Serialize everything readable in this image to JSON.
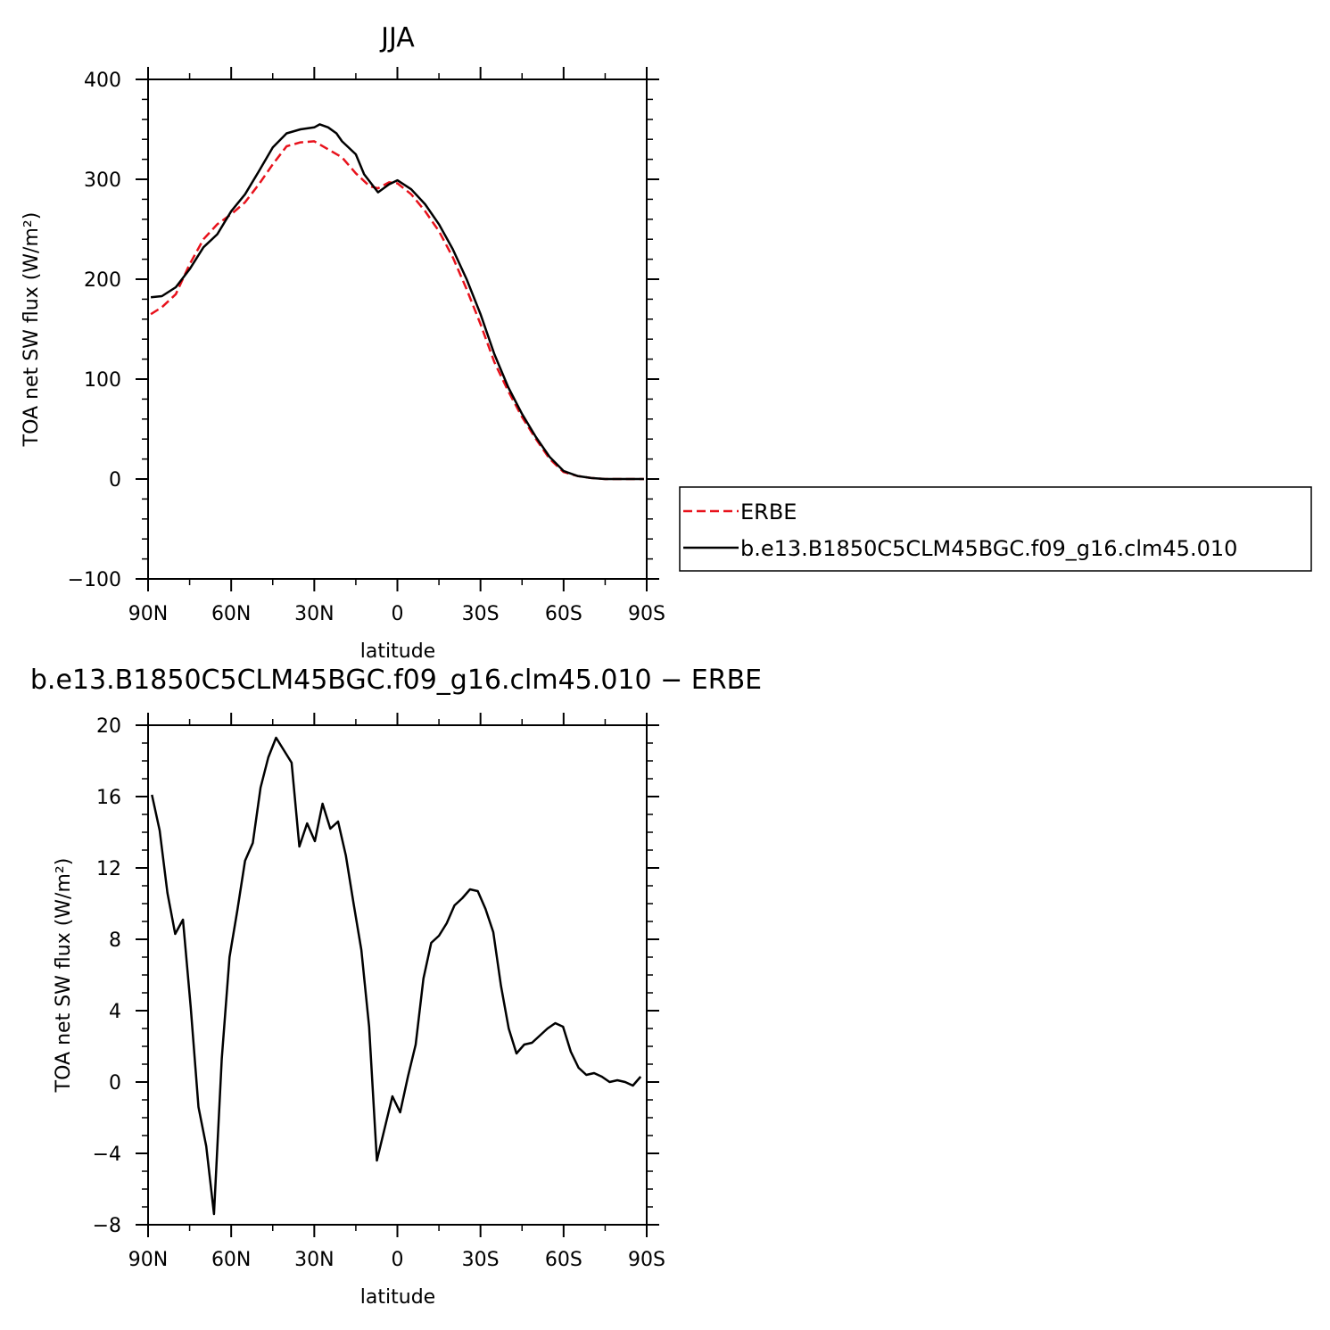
{
  "chart_data": [
    {
      "type": "line",
      "title": "JJA",
      "xlabel": "latitude",
      "ylabel": "TOA net SW flux (W/m²)",
      "xlim": [
        -90,
        90
      ],
      "ylim": [
        -100,
        400
      ],
      "x_ticks": [
        -90,
        -60,
        -30,
        0,
        30,
        60,
        90
      ],
      "x_tick_labels": [
        "90N",
        "60N",
        "30N",
        "0",
        "30S",
        "60S",
        "90S"
      ],
      "y_ticks": [
        -100,
        0,
        100,
        200,
        300,
        400
      ],
      "y_tick_labels": [
        "−100",
        "0",
        "100",
        "200",
        "300",
        "400"
      ],
      "legend_position": "right",
      "legend_entries": [
        "ERBE",
        "b.e13.B1850C5CLM45BGC.f09_g16.clm45.010"
      ],
      "series": [
        {
          "name": "ERBE",
          "color": "#e8121c",
          "dash": "dashed",
          "x": [
            -89,
            -85,
            -80,
            -75,
            -70,
            -65,
            -60,
            -55,
            -50,
            -45,
            -40,
            -35,
            -30,
            -25,
            -20,
            -15,
            -10,
            -7,
            -3,
            0,
            5,
            10,
            15,
            20,
            25,
            30,
            35,
            40,
            45,
            50,
            55,
            60,
            65,
            70,
            75,
            80,
            85,
            89
          ],
          "y": [
            165,
            172,
            185,
            215,
            240,
            255,
            265,
            277,
            295,
            315,
            333,
            337,
            338,
            330,
            322,
            306,
            293,
            291,
            297,
            296,
            285,
            268,
            248,
            222,
            190,
            155,
            117,
            88,
            62,
            40,
            20,
            7,
            3,
            1,
            0,
            0,
            0,
            0
          ]
        },
        {
          "name": "b.e13.B1850C5CLM45BGC.f09_g16.clm45.010",
          "color": "#000000",
          "dash": "solid",
          "x": [
            -89,
            -85,
            -80,
            -75,
            -70,
            -65,
            -60,
            -55,
            -50,
            -45,
            -40,
            -35,
            -30,
            -28,
            -25,
            -22,
            -20,
            -15,
            -12,
            -7,
            -3,
            0,
            5,
            10,
            15,
            20,
            25,
            30,
            35,
            40,
            45,
            50,
            55,
            60,
            65,
            70,
            75,
            80,
            85,
            89
          ],
          "y": [
            182,
            183,
            192,
            210,
            232,
            245,
            268,
            285,
            308,
            332,
            346,
            350,
            352,
            355,
            352,
            346,
            338,
            325,
            305,
            287,
            295,
            299,
            290,
            275,
            255,
            230,
            200,
            165,
            125,
            92,
            65,
            42,
            22,
            8,
            3,
            1,
            0,
            0,
            0,
            0
          ]
        }
      ]
    },
    {
      "type": "line",
      "title": "b.e13.B1850C5CLM45BGC.f09_g16.clm45.010 − ERBE",
      "xlabel": "latitude",
      "ylabel": "TOA net SW flux (W/m²)",
      "xlim": [
        -90,
        90
      ],
      "ylim": [
        -8,
        20
      ],
      "x_ticks": [
        -90,
        -60,
        -30,
        0,
        30,
        60,
        90
      ],
      "x_tick_labels": [
        "90N",
        "60N",
        "30N",
        "0",
        "30S",
        "60S",
        "90S"
      ],
      "y_ticks": [
        -8,
        -4,
        0,
        4,
        8,
        12,
        16,
        20
      ],
      "y_tick_labels": [
        "−8",
        "−4",
        "0",
        "4",
        "8",
        "12",
        "16",
        "20"
      ],
      "series": [
        {
          "color": "#000000",
          "dash": "solid",
          "x": [
            -88.6,
            -85.8,
            -83.0,
            -80.2,
            -77.4,
            -74.6,
            -71.8,
            -69.0,
            -66.2,
            -63.4,
            -60.6,
            -57.8,
            -55.0,
            -52.2,
            -49.4,
            -46.6,
            -43.8,
            -41.0,
            -38.2,
            -35.4,
            -32.6,
            -29.8,
            -27.0,
            -24.2,
            -21.4,
            -18.6,
            -15.8,
            -13.0,
            -10.2,
            -7.4,
            -4.6,
            -1.8,
            1.0,
            3.8,
            6.6,
            9.4,
            12.2,
            15.0,
            17.8,
            20.6,
            23.4,
            26.2,
            29.0,
            31.8,
            34.6,
            37.4,
            40.2,
            43.0,
            45.8,
            48.6,
            51.4,
            54.2,
            57.0,
            59.8,
            62.6,
            65.4,
            68.2,
            71.0,
            73.8,
            76.6,
            79.4,
            82.2,
            85.0,
            87.8
          ],
          "y": [
            16.1,
            14.1,
            10.6,
            8.3,
            9.1,
            4.2,
            -1.4,
            -3.6,
            -7.4,
            1.3,
            7.0,
            9.6,
            12.4,
            13.4,
            16.5,
            18.2,
            19.3,
            18.6,
            17.9,
            13.2,
            14.5,
            13.5,
            15.6,
            14.2,
            14.6,
            12.7,
            10.0,
            7.4,
            3.1,
            -4.4,
            -2.6,
            -0.8,
            -1.7,
            0.3,
            2.1,
            5.8,
            7.8,
            8.2,
            8.9,
            9.9,
            10.3,
            10.8,
            10.7,
            9.7,
            8.4,
            5.4,
            3.0,
            1.6,
            2.1,
            2.2,
            2.6,
            3.0,
            3.3,
            3.1,
            1.7,
            0.8,
            0.4,
            0.5,
            0.3,
            0.0,
            0.1,
            0.0,
            -0.2,
            0.3
          ]
        }
      ]
    }
  ]
}
